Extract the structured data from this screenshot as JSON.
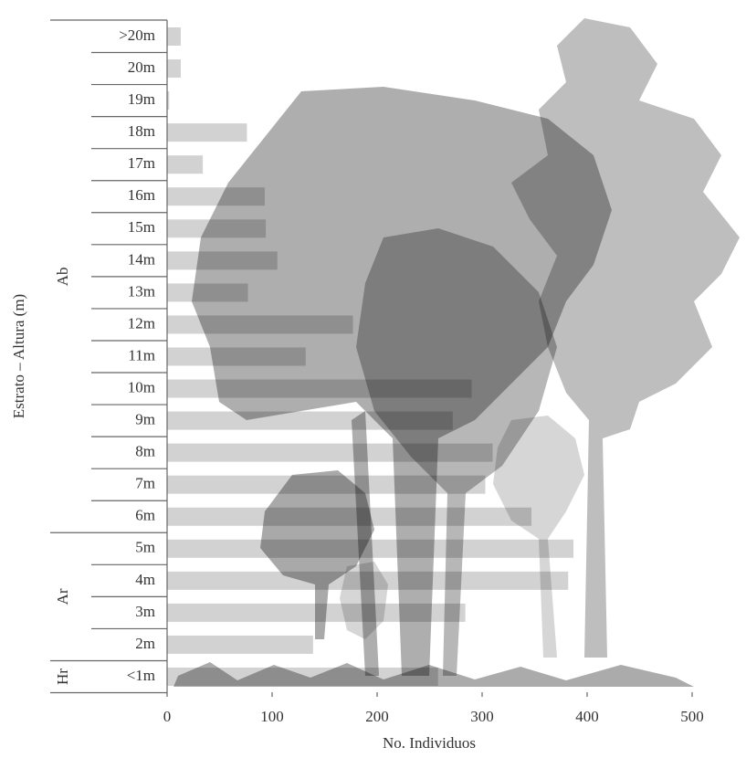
{
  "chart_data": {
    "type": "bar",
    "orientation": "horizontal",
    "y_axis_label": "Estrato – Altura (m)",
    "x_axis_label": "No. Individuos",
    "color": "#d2d2d2",
    "groups": [
      {
        "name": "Ab",
        "categories": [
          ">20m",
          "20m",
          "19m",
          "18m",
          "17m",
          "16m",
          "15m",
          "14m",
          "13m",
          "12m",
          "11m",
          "10m",
          "9m",
          "8m",
          "7m",
          "6m"
        ],
        "values": [
          13,
          13,
          2,
          76,
          34,
          93,
          94,
          105,
          77,
          177,
          132,
          290,
          272,
          310,
          303,
          347
        ]
      },
      {
        "name": "Ar",
        "categories": [
          "5m",
          "4m",
          "3m",
          "2m"
        ],
        "values": [
          387,
          382,
          284,
          139
        ]
      },
      {
        "name": "Hr",
        "categories": [
          "<1m"
        ],
        "values": [
          258
        ]
      }
    ],
    "xlim": [
      0,
      500
    ],
    "xticks": [
      0,
      100,
      200,
      300,
      400,
      500
    ]
  }
}
